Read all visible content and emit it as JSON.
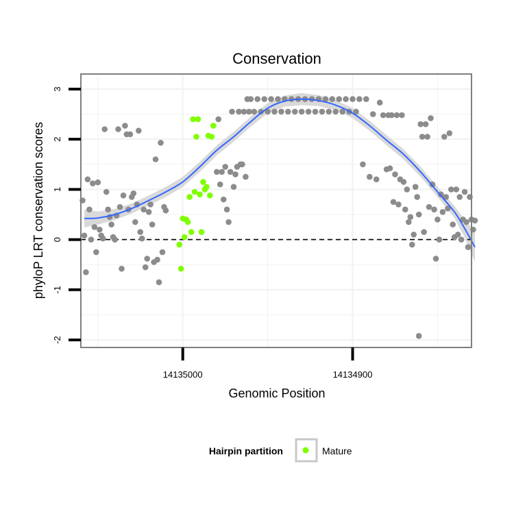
{
  "chart_data": {
    "type": "scatter",
    "title": "Conservation",
    "xlabel": "Genomic Position",
    "ylabel": "phyloP LRT conservation scores",
    "x_reversed": true,
    "xlim": [
      14135060,
      14134830
    ],
    "ylim": [
      -2.15,
      3.3
    ],
    "x_ticks": [
      14135000,
      14134900
    ],
    "x_tick_labels": [
      "14135000",
      "14134900"
    ],
    "y_ticks": [
      -2,
      -1,
      0,
      1,
      2,
      3
    ],
    "y_tick_labels": [
      "-2",
      "-1",
      "0",
      "1",
      "2",
      "3"
    ],
    "reference_line_y": 0,
    "grid": true,
    "legend": {
      "position": "bottom",
      "title": "Hairpin partition",
      "entries": [
        {
          "label": "Mature",
          "color": "#7fff00"
        }
      ]
    },
    "colors": {
      "other": "#8c8c8c",
      "mature": "#7fff00",
      "smooth": "#3366ff",
      "band": "#d2d2d2"
    },
    "series": [
      {
        "name": "Other",
        "points": [
          [
            14135059,
            0.78
          ],
          [
            14135058,
            0.08
          ],
          [
            14135057,
            -0.65
          ],
          [
            14135056,
            1.2
          ],
          [
            14135055,
            0.6
          ],
          [
            14135054,
            0.0
          ],
          [
            14135053,
            1.12
          ],
          [
            14135052,
            0.25
          ],
          [
            14135051,
            -0.25
          ],
          [
            14135050,
            1.14
          ],
          [
            14135049,
            0.2
          ],
          [
            14135048,
            0.08
          ],
          [
            14135047,
            0.02
          ],
          [
            14135046,
            2.2
          ],
          [
            14135045,
            0.95
          ],
          [
            14135044,
            0.6
          ],
          [
            14135043,
            0.45
          ],
          [
            14135042,
            0.3
          ],
          [
            14135041,
            0.05
          ],
          [
            14135040,
            0.0
          ],
          [
            14135039,
            0.48
          ],
          [
            14135038,
            2.2
          ],
          [
            14135037,
            0.65
          ],
          [
            14135036,
            -0.58
          ],
          [
            14135035,
            0.88
          ],
          [
            14135034,
            2.27
          ],
          [
            14135033,
            2.1
          ],
          [
            14135032,
            0.6
          ],
          [
            14135031,
            2.1
          ],
          [
            14135030,
            0.85
          ],
          [
            14135029,
            0.92
          ],
          [
            14135028,
            0.35
          ],
          [
            14135027,
            0.7
          ],
          [
            14135026,
            2.17
          ],
          [
            14135025,
            0.15
          ],
          [
            14135024,
            0.02
          ],
          [
            14135023,
            0.6
          ],
          [
            14135022,
            -0.55
          ],
          [
            14135021,
            -0.38
          ],
          [
            14135020,
            0.55
          ],
          [
            14135019,
            0.7
          ],
          [
            14135018,
            0.3
          ],
          [
            14135017,
            -0.45
          ],
          [
            14135016,
            1.6
          ],
          [
            14135015,
            -0.4
          ],
          [
            14135014,
            -0.85
          ],
          [
            14135013,
            1.93
          ],
          [
            14135012,
            -0.25
          ],
          [
            14135011,
            0.65
          ],
          [
            14135010,
            0.58
          ],
          [
            14134980,
            1.35
          ],
          [
            14134979,
            2.4
          ],
          [
            14134978,
            1.1
          ],
          [
            14134977,
            1.35
          ],
          [
            14134976,
            0.8
          ],
          [
            14134975,
            1.45
          ],
          [
            14134974,
            0.6
          ],
          [
            14134973,
            0.35
          ],
          [
            14134972,
            1.35
          ],
          [
            14134971,
            2.55
          ],
          [
            14134970,
            1.05
          ],
          [
            14134969,
            1.3
          ],
          [
            14134968,
            1.45
          ],
          [
            14134967,
            2.55
          ],
          [
            14134966,
            1.5
          ],
          [
            14134965,
            1.5
          ],
          [
            14134964,
            2.55
          ],
          [
            14134963,
            1.25
          ],
          [
            14134962,
            2.8
          ],
          [
            14134961,
            2.55
          ],
          [
            14134960,
            2.8
          ],
          [
            14134958,
            2.55
          ],
          [
            14134956,
            2.8
          ],
          [
            14134954,
            2.55
          ],
          [
            14134952,
            2.8
          ],
          [
            14134950,
            2.55
          ],
          [
            14134948,
            2.8
          ],
          [
            14134946,
            2.55
          ],
          [
            14134944,
            2.8
          ],
          [
            14134942,
            2.55
          ],
          [
            14134940,
            2.8
          ],
          [
            14134938,
            2.55
          ],
          [
            14134936,
            2.8
          ],
          [
            14134934,
            2.55
          ],
          [
            14134932,
            2.8
          ],
          [
            14134930,
            2.55
          ],
          [
            14134928,
            2.8
          ],
          [
            14134926,
            2.55
          ],
          [
            14134924,
            2.8
          ],
          [
            14134922,
            2.55
          ],
          [
            14134920,
            2.8
          ],
          [
            14134918,
            2.55
          ],
          [
            14134916,
            2.8
          ],
          [
            14134914,
            2.55
          ],
          [
            14134912,
            2.8
          ],
          [
            14134910,
            2.55
          ],
          [
            14134908,
            2.8
          ],
          [
            14134906,
            2.55
          ],
          [
            14134904,
            2.8
          ],
          [
            14134902,
            2.55
          ],
          [
            14134900,
            2.8
          ],
          [
            14134898,
            2.55
          ],
          [
            14134896,
            2.8
          ],
          [
            14134894,
            1.5
          ],
          [
            14134892,
            2.8
          ],
          [
            14134890,
            1.25
          ],
          [
            14134888,
            2.5
          ],
          [
            14134886,
            1.2
          ],
          [
            14134884,
            2.73
          ],
          [
            14134882,
            2.48
          ],
          [
            14134880,
            1.4
          ],
          [
            14134879,
            2.48
          ],
          [
            14134878,
            1.42
          ],
          [
            14134877,
            2.48
          ],
          [
            14134876,
            0.75
          ],
          [
            14134875,
            1.3
          ],
          [
            14134874,
            2.48
          ],
          [
            14134873,
            0.7
          ],
          [
            14134872,
            1.2
          ],
          [
            14134871,
            2.48
          ],
          [
            14134870,
            1.15
          ],
          [
            14134869,
            0.6
          ],
          [
            14134868,
            1.0
          ],
          [
            14134867,
            0.35
          ],
          [
            14134866,
            0.45
          ],
          [
            14134865,
            -0.1
          ],
          [
            14134864,
            0.1
          ],
          [
            14134863,
            1.05
          ],
          [
            14134862,
            0.85
          ],
          [
            14134861,
            0.5
          ],
          [
            14134860,
            2.3
          ],
          [
            14134859,
            2.05
          ],
          [
            14134858,
            0.15
          ],
          [
            14134857,
            2.3
          ],
          [
            14134856,
            2.05
          ],
          [
            14134855,
            0.65
          ],
          [
            14134854,
            2.42
          ],
          [
            14134853,
            1.1
          ],
          [
            14134852,
            0.6
          ],
          [
            14134851,
            -0.38
          ],
          [
            14134850,
            0.4
          ],
          [
            14134849,
            0.0
          ],
          [
            14134848,
            0.9
          ],
          [
            14134847,
            0.55
          ],
          [
            14134846,
            2.05
          ],
          [
            14134845,
            0.85
          ],
          [
            14134844,
            0.62
          ],
          [
            14134843,
            2.12
          ],
          [
            14134842,
            1.0
          ],
          [
            14134841,
            0.3
          ],
          [
            14134840,
            0.05
          ],
          [
            14134839,
            1.0
          ],
          [
            14134838,
            0.1
          ],
          [
            14134837,
            0.85
          ],
          [
            14134836,
            0.0
          ],
          [
            14134835,
            0.4
          ],
          [
            14134834,
            0.95
          ],
          [
            14134833,
            0.35
          ],
          [
            14134832,
            -0.15
          ],
          [
            14134831,
            0.85
          ],
          [
            14134830,
            0.4
          ],
          [
            14134829,
            0.2
          ],
          [
            14134828,
            0.38
          ],
          [
            14134861,
            -1.92
          ]
        ]
      },
      {
        "name": "Mature",
        "points": [
          [
            14135002,
            -0.1
          ],
          [
            14135001,
            -0.58
          ],
          [
            14135000,
            0.42
          ],
          [
            14134999,
            0.05
          ],
          [
            14134998,
            0.4
          ],
          [
            14134997,
            0.35
          ],
          [
            14134996,
            0.85
          ],
          [
            14134995,
            0.15
          ],
          [
            14134994,
            2.4
          ],
          [
            14134993,
            0.95
          ],
          [
            14134992,
            2.05
          ],
          [
            14134991,
            2.4
          ],
          [
            14134990,
            0.9
          ],
          [
            14134989,
            0.15
          ],
          [
            14134988,
            1.15
          ],
          [
            14134987,
            1.0
          ],
          [
            14134986,
            1.05
          ],
          [
            14134985,
            2.07
          ],
          [
            14134984,
            0.88
          ],
          [
            14134983,
            2.05
          ],
          [
            14134982,
            2.27
          ]
        ]
      }
    ],
    "smooth_curve": {
      "x": [
        14135058,
        14135050,
        14135040,
        14135030,
        14135020,
        14135010,
        14135000,
        14134990,
        14134980,
        14134970,
        14134960,
        14134950,
        14134940,
        14134930,
        14134920,
        14134910,
        14134900,
        14134890,
        14134880,
        14134870,
        14134860,
        14134850,
        14134840,
        14134834,
        14134828
      ],
      "y": [
        0.42,
        0.43,
        0.5,
        0.62,
        0.78,
        0.95,
        1.15,
        1.45,
        1.78,
        2.05,
        2.35,
        2.62,
        2.76,
        2.8,
        2.77,
        2.68,
        2.52,
        2.27,
        1.98,
        1.7,
        1.35,
        0.95,
        0.55,
        0.22,
        -0.15
      ],
      "se": [
        0.18,
        0.13,
        0.11,
        0.1,
        0.1,
        0.1,
        0.1,
        0.1,
        0.1,
        0.1,
        0.1,
        0.1,
        0.11,
        0.12,
        0.11,
        0.1,
        0.1,
        0.1,
        0.1,
        0.1,
        0.1,
        0.1,
        0.12,
        0.18,
        0.3
      ]
    }
  }
}
